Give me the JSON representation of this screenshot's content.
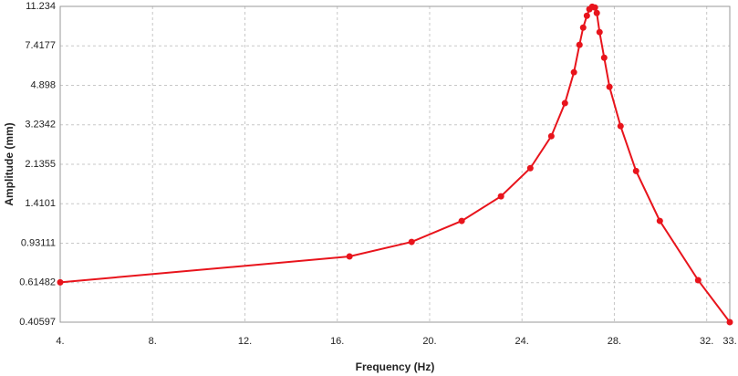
{
  "chart_data": {
    "type": "line",
    "log_y": true,
    "grid": true,
    "x_label": "Frequency (Hz)",
    "y_label": "Amplitude (mm)",
    "xlim": [
      4,
      33
    ],
    "xticks": [
      {
        "value": 4,
        "label": "4."
      },
      {
        "value": 8,
        "label": "8."
      },
      {
        "value": 12,
        "label": "12."
      },
      {
        "value": 16,
        "label": "16."
      },
      {
        "value": 20,
        "label": "20."
      },
      {
        "value": 24,
        "label": "24."
      },
      {
        "value": 28,
        "label": "28."
      },
      {
        "value": 32,
        "label": "32."
      },
      {
        "value": 33,
        "label": "33."
      }
    ],
    "ylim": [
      0.40597,
      11.234
    ],
    "yticks": [
      0.40597,
      0.61482,
      0.93111,
      1.4101,
      2.1355,
      3.2342,
      4.898,
      7.4177,
      11.234
    ],
    "series": [
      {
        "color": "#e8141c",
        "x": [
          4,
          16.53,
          19.22,
          21.39,
          23.09,
          24.36,
          25.27,
          25.86,
          26.25,
          26.49,
          26.65,
          26.81,
          26.92,
          27.04,
          27.16,
          27.24,
          27.36,
          27.56,
          27.79,
          28.27,
          28.94,
          29.97,
          31.63,
          33
        ],
        "values": [
          0.617,
          0.81,
          0.944,
          1.177,
          1.525,
          2.05,
          2.87,
          4.06,
          5.62,
          7.5,
          8.99,
          10.18,
          10.9,
          11.2,
          11.1,
          10.48,
          8.57,
          6.55,
          4.82,
          3.19,
          1.99,
          1.177,
          0.631,
          0.406
        ]
      }
    ]
  }
}
